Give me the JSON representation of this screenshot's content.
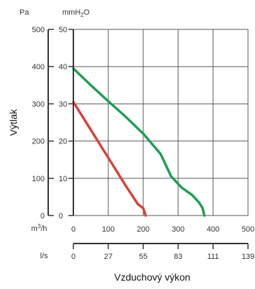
{
  "chart_data": {
    "type": "line",
    "xlabel": "Vzduchový výkon",
    "ylabel": "Výtlak",
    "y_axis_pa": {
      "unit": "Pa",
      "ticks": [
        "500",
        "400",
        "300",
        "200",
        "100",
        "0"
      ],
      "range": [
        0,
        500
      ]
    },
    "y_axis_mmh2o": {
      "unit_base": "mmH",
      "unit_sub": "2",
      "unit_tail": "O",
      "ticks": [
        "50",
        "40",
        "30",
        "20",
        "10",
        "0"
      ],
      "range": [
        0,
        50
      ]
    },
    "x_axis_m3h": {
      "unit_base": "m",
      "unit_sup": "3",
      "unit_tail": "/h",
      "ticks": [
        "0",
        "100",
        "200",
        "300",
        "400",
        "500"
      ],
      "range": [
        0,
        500
      ]
    },
    "x_axis_ls": {
      "unit": "l/s",
      "ticks": [
        "0",
        "27",
        "55",
        "83",
        "111",
        "139"
      ]
    },
    "grid": true,
    "series": [
      {
        "color": "#d9403a",
        "x": [
          0,
          50,
          100,
          150,
          185,
          200,
          207
        ],
        "y": [
          305,
          230,
          155,
          80,
          30,
          20,
          0
        ]
      },
      {
        "color": "#1e9e52",
        "x": [
          0,
          50,
          100,
          150,
          200,
          250,
          280,
          310,
          340,
          360,
          370,
          375
        ],
        "y": [
          395,
          350,
          307,
          265,
          220,
          165,
          105,
          75,
          55,
          35,
          20,
          0
        ]
      }
    ]
  }
}
